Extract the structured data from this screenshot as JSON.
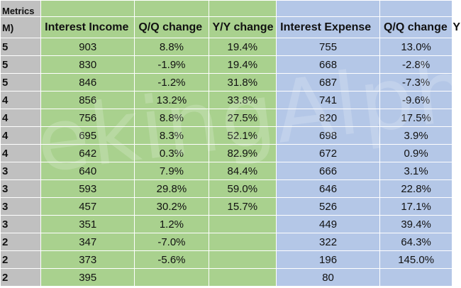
{
  "header": {
    "metrics_top": "Metrics",
    "metrics_bottom": "M)",
    "columns": [
      "Interest Income",
      "Q/Q change",
      "Y/Y change",
      "Interest Expense",
      "Q/Q change",
      "Y"
    ]
  },
  "rows": [
    {
      "q": "5",
      "ii": "903",
      "ii_qq": "8.8%",
      "ii_yy": "19.4%",
      "ie": "755",
      "ie_qq": "13.0%"
    },
    {
      "q": "5",
      "ii": "830",
      "ii_qq": "-1.9%",
      "ii_yy": "19.4%",
      "ie": "668",
      "ie_qq": "-2.8%"
    },
    {
      "q": "5",
      "ii": "846",
      "ii_qq": "-1.2%",
      "ii_yy": "31.8%",
      "ie": "687",
      "ie_qq": "-7.3%"
    },
    {
      "q": "4",
      "ii": "856",
      "ii_qq": "13.2%",
      "ii_yy": "33.8%",
      "ie": "741",
      "ie_qq": "-9.6%"
    },
    {
      "q": "4",
      "ii": "756",
      "ii_qq": "8.8%",
      "ii_yy": "27.5%",
      "ie": "820",
      "ie_qq": "17.5%"
    },
    {
      "q": "4",
      "ii": "695",
      "ii_qq": "8.3%",
      "ii_yy": "52.1%",
      "ie": "698",
      "ie_qq": "3.9%"
    },
    {
      "q": "4",
      "ii": "642",
      "ii_qq": "0.3%",
      "ii_yy": "82.9%",
      "ie": "672",
      "ie_qq": "0.9%"
    },
    {
      "q": "3",
      "ii": "640",
      "ii_qq": "7.9%",
      "ii_yy": "84.4%",
      "ie": "666",
      "ie_qq": "3.1%"
    },
    {
      "q": "3",
      "ii": "593",
      "ii_qq": "29.8%",
      "ii_yy": "59.0%",
      "ie": "646",
      "ie_qq": "22.8%"
    },
    {
      "q": "3",
      "ii": "457",
      "ii_qq": "30.2%",
      "ii_yy": "15.7%",
      "ie": "526",
      "ie_qq": "17.1%"
    },
    {
      "q": "3",
      "ii": "351",
      "ii_qq": "1.2%",
      "ii_yy": "",
      "ie": "449",
      "ie_qq": "39.4%"
    },
    {
      "q": "2",
      "ii": "347",
      "ii_qq": "-7.0%",
      "ii_yy": "",
      "ie": "322",
      "ie_qq": "64.3%"
    },
    {
      "q": "2",
      "ii": "373",
      "ii_qq": "-5.6%",
      "ii_yy": "",
      "ie": "196",
      "ie_qq": "145.0%"
    },
    {
      "q": "2",
      "ii": "395",
      "ii_qq": "",
      "ii_yy": "",
      "ie": "80",
      "ie_qq": ""
    }
  ],
  "colors": {
    "label_column": "#c0c0c0",
    "income_columns": "#a9d18e",
    "expense_columns": "#b4c7e7"
  }
}
